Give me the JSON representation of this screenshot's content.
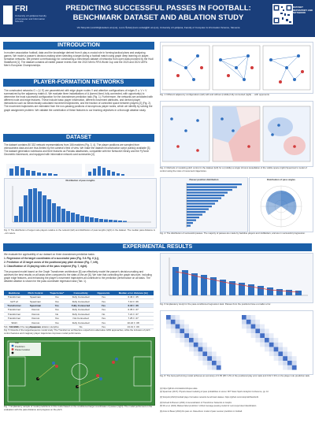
{
  "header": {
    "logo_text": "FRI",
    "logo_sub": "University of Ljubljana Faculty of Computer and Information Science",
    "title_line1": "PREDICTING SUCCESSFUL PASSES IN FOOTBALL:",
    "title_line2": "BENCHMARK DATASET AND ABLATION STUDY",
    "authors": "Vid Stropnik (vs1234@student.uni-lj.si), Lovro Šubelj (lovro.subelj@fri.uni-lj.si), University of Ljubljana, Faculty of Computer & Information Science, Slovenia",
    "qr_caption": "DATASET REPOSITORY AND NOTEBOOK"
  },
  "sections": {
    "intro": "INTRODUCTION",
    "networks": "PLAYER-FORMATION NETWORKS",
    "dataset": "DATASET",
    "results": "EXPERIMENTAL RESULTS"
  },
  "intro_text": "In modern association football, data and the knowledge derived from it play a crucial role in forming tactical plans and analyzing games. We model a passer's decision-making when selecting a target during a football match using graph deep learning on player-formation networks. We present a methodology for constructing a benchmark dataset of networks from open data provided by the Hudl StatsBomb [1]. The dataset contains all visible passer events from the 2022 Men's FIFA World Cup and the 2020 and 2024 UEFA Men's European Championships.",
  "networks_text": "The constructed networks G = (V, E) are parametrized with edge player nodes V and attentive configurations of edges E ⊆ V × V summarized by the adjacency matrix A. We evaluate three instantiations of A (turned-fixed, fully connected, with opportunity) to determine the most successful configuration for the downstream prediction task (Fig. 1). Furthermore, the networks are annotated with different node and edge features. These include basic player information, different movement attributes, and derived player interactions such as hierarchically calculated movement trajectories, and the fraction of controlled space between players [2] (Fig. 2). The movement trajectories are estimated from the non-passing positions of anonymous player nodes, which we identify by solving the graph assignment problem. We validate the contribution of these features to our learning objectives in a thorough ablation study.",
  "dataset_text": "The dataset contains 80 332 network representations from 166 matches (Fig. 3, 4). The player positions are sampled from videocamera data and are thus limited by the camera's field of view. We make the dataset reconstruction script publicly available [3]. The dataset generation notebooks and their features as Pandas dataframes, compatible with the NetworkX library and the PyTorch Geometric framework, and equipped with informative network card summaries [4].",
  "captions": {
    "fig1": "Fig. 1: Different adjacency configurations (left) with and without (middle) fully connected (right) ... with opponents",
    "fig2": "Fig. 2: Methods of modeling pitch control in the dataset (left) for a (middle) a single Voronoi tessellation of the visible space (right) Spearman's model of control using the rules of movement trajectories.",
    "fig3": "Fig. 3: The distribution of target node players relative to the network (left) and distribution of pass lengths (right) in the dataset. The median pass distance is ~12 meters.",
    "fig4": "Fig. 4: The distribution of successful passes. The majority of passes are made by backline players and midfielders, and are in successful progression.",
    "fig5": "Fig. 5: Results of the target/sequence model study. The Transformer architecture outperforms alternative GNN approaches, while the inclusion of pitch control features and imaginary player trajectories improves model performance.",
    "fig6": "Fig. 6: Explanatory study for the pass-conditioned regression task. Passes from the positions have a smaller error.",
    "fig7": "Fig. 7: Explanatory sample of model predictions in this model based on the conditioned target coordinates of passes (right). The model performed on the evaluation with the pass distance and progress on the pitch.",
    "fig8": "Fig. 8: The best-performing model achieves an accuracy of 0.65 (95 ± 2% of the positional play error task and 0.62 ± 3% on the player role prediction task."
  },
  "results_intro": "We evaluate the applicability of our dataset on three downstream prediction tasks:",
  "tasks": [
    "1. Regression of the target coordinates of a successful pass (Fig. 5 & Fig. 6 (L)),",
    "2. Prediction of 22 target zones of the positional play pitch division (Fig. 7, left),",
    "3. Classification of 23 playing roles of the pass recipient (Fig. 7, right)."
  ],
  "results_text": "The proposed model based on the Graph Transformer architecture [5] can effectively model the passer's decision-making and achieves the best results on all tasks when compared to the state-of-the-art [6]. We note that controlling the graph structure, including graph edge features, and enhancing the player's movement trajectories all contribute to the prediction performance on all tasks. The detailed ablation is shown for the pass coordinate regression task (Tab. 1).",
  "table": {
    "headers": [
      "Backbone",
      "Pitch Control",
      "Trajectories*",
      "Connectivity",
      "Opponents",
      "Median error distance [m]"
    ],
    "rows": [
      [
        "Transformer",
        "Spearman",
        "Yes",
        "Fully Connected",
        "Yes",
        "6.46 ± .05"
      ],
      [
        "GAT v2",
        "Spearman",
        "Yes",
        "Fully Connected",
        "Yes",
        "7.10 ± .06"
      ],
      [
        "Transformer",
        "Spearman",
        "Yes",
        "Fully Connected",
        "Yes",
        "6.18 ± .06"
      ],
      [
        "Transformer",
        "Voronoi",
        "Yes",
        "Fully Connected",
        "Yes",
        "6.35 ± .07"
      ],
      [
        "Transformer",
        "Voronoi",
        "No",
        "Fully Connected",
        "No",
        "7.21 ± .07"
      ],
      [
        "Transformer",
        "Voronoi",
        "Yes",
        "Not Connected",
        "Yes",
        "7.25 ± .07"
      ],
      [
        "SIGN",
        "Voronoi",
        "Yes",
        "Fully Connected",
        "Yes",
        "10.22 ± .08"
      ],
      [
        "No NN/C",
        "Spearman",
        "Yes",
        "No",
        "Yes",
        "13.31 ± .09"
      ]
    ],
    "best_row": 2,
    "caption": "Tab. 1: Results of the target/sequence ablation study."
  },
  "references": [
    "[1] https://github.com/statsbomb/open-data",
    "[2] Spearman (2017). Physics-based modeling of pass probabilities in soccer. MIT Sloan Sports Analytics Conference, pp. 10",
    "[3] Stropnik (2024) Football player formation networks benchmark dataset. https://github.com/vstropnik/PassNetS",
    "[4] Dwivedi & Bresson (2021) A Generalization of Transformer Networks to Graphs",
    "[5] Shi et al. (2021) Masked label prediction: Unified message passing model for semi-supervised classification.",
    "[6] Anzer & Bauer (2024) Do pass on. Data-driven model of pass receiver prediction in football."
  ],
  "legend": {
    "true": "true",
    "predicted": "Prediction",
    "passer": "Passer location"
  },
  "fig3_panel_title": "Distribution of pass lengths",
  "fig4_panel_title": "Passer position distribution",
  "fig4b_panel_title": "Distribution of pass angles",
  "colors": {
    "header": "#1a3e7a",
    "section": "#1a5fa8",
    "accent": "#2f6fbf",
    "pitch": "#3c8a3c"
  }
}
